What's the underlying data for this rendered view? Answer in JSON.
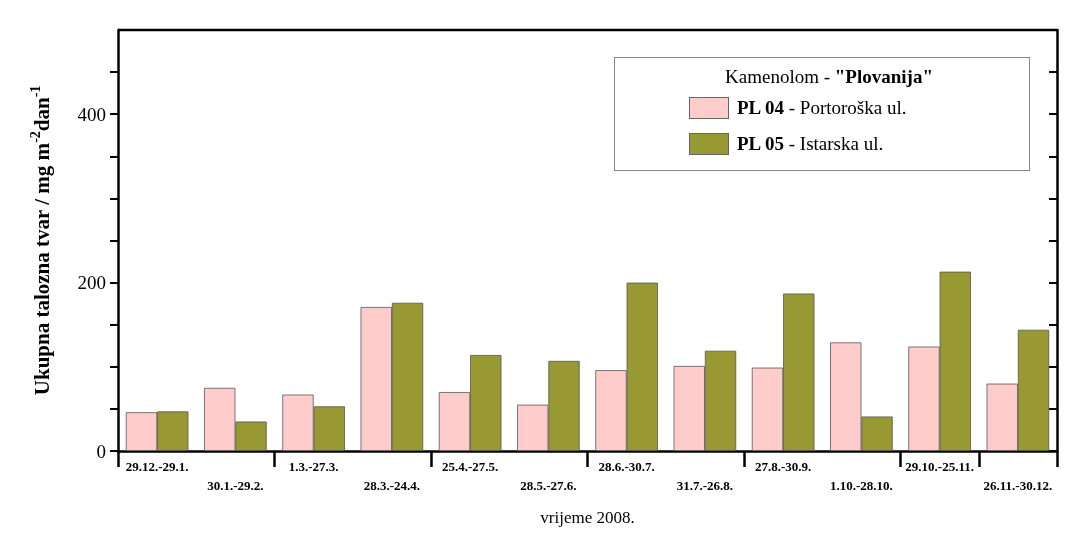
{
  "chart_data": {
    "type": "bar",
    "categories": [
      "29.12.-29.1.",
      "30.1.-29.2.",
      "1.3.-27.3.",
      "28.3.-24.4.",
      "25.4.-27.5.",
      "28.5.-27.6.",
      "28.6.-30.7.",
      "31.7.-26.8.",
      "27.8.-30.9.",
      "1.10.-28.10.",
      "29.10.-25.11.",
      "26.11.-30.12."
    ],
    "series": [
      {
        "name": "PL 04 - Portoroška ul.",
        "color": "#ffcccc",
        "values": [
          46,
          75,
          67,
          171,
          70,
          55,
          96,
          101,
          99,
          129,
          124,
          80
        ]
      },
      {
        "name": "PL 05 - Istarska ul.",
        "color": "#999933",
        "values": [
          47,
          35,
          53,
          176,
          114,
          107,
          200,
          119,
          187,
          41,
          213,
          144
        ]
      }
    ],
    "xlabel": "vrijeme 2008.",
    "ylabel": "Ukupna talozna tvar / mg m$^{-2}$dan$^{-1}$",
    "legend_title": "Kamenolom - \"Plovanija\"",
    "legend": "top right",
    "grid": false,
    "ylim": [
      0,
      500
    ],
    "yticks": [
      0,
      {
        "value": 50,
        "label": null
      },
      {
        "value": 100,
        "label": null
      },
      {
        "value": 150,
        "label": null
      },
      200,
      {
        "value": 250,
        "label": null
      },
      {
        "value": 300,
        "label": null
      },
      {
        "value": 350,
        "label": null
      },
      400,
      {
        "value": 450,
        "label": null
      }
    ]
  }
}
